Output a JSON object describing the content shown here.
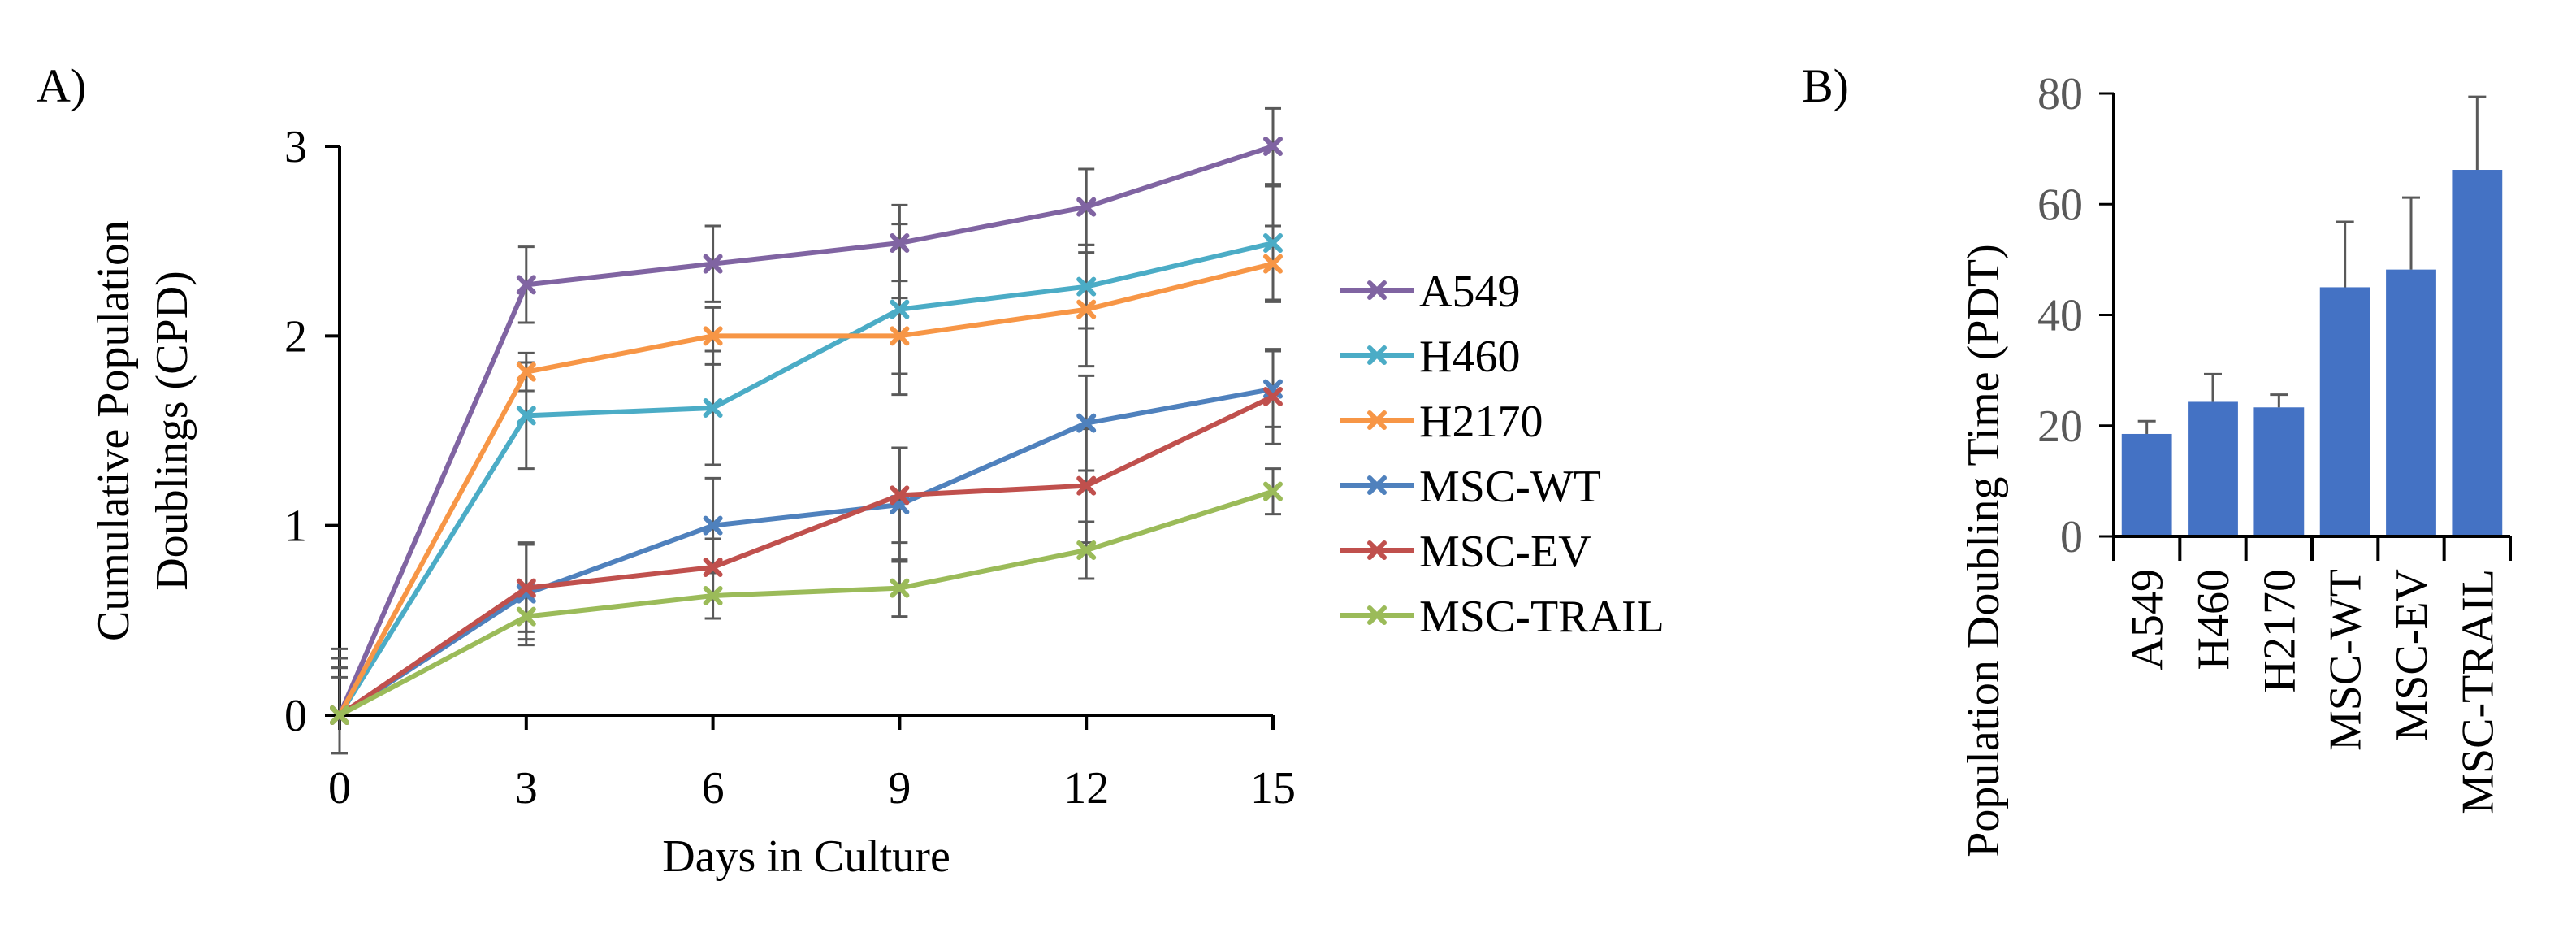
{
  "panel_labels": {
    "a": "A)",
    "b": "B)"
  },
  "colors": {
    "A549": "#8064a2",
    "H460": "#4bacc6",
    "H2170": "#f79646",
    "MSC-WT": "#4f81bd",
    "MSC-EV": "#c0504d",
    "MSC-TRAIL": "#9bbb59",
    "bars": "#4472c4",
    "error_bars": "#595959"
  },
  "chart_data": [
    {
      "type": "line",
      "panel": "A)",
      "title": "",
      "xlabel": "Days in Culture",
      "ylabel": "Cumulative Population Doublings (CPD)",
      "x": [
        0,
        3,
        6,
        9,
        12,
        15
      ],
      "x_ticks": [
        "0",
        "3",
        "6",
        "9",
        "12",
        "15"
      ],
      "y_ticks": [
        "0",
        "1",
        "2",
        "3"
      ],
      "xlim": [
        0,
        15
      ],
      "ylim": [
        0,
        3
      ],
      "legend_position": "right",
      "marker": "x",
      "series": [
        {
          "name": "A549",
          "values": [
            0,
            2.27,
            2.38,
            2.49,
            2.68,
            3.0
          ],
          "errors": [
            0.35,
            0.2,
            0.2,
            0.2,
            0.2,
            0.2
          ]
        },
        {
          "name": "H460",
          "values": [
            0,
            1.58,
            1.62,
            2.14,
            2.26,
            2.49
          ],
          "errors": [
            0.3,
            0.28,
            0.3,
            0.45,
            0.22,
            0.3
          ]
        },
        {
          "name": "H2170",
          "values": [
            0,
            1.81,
            2.0,
            2.0,
            2.14,
            2.38
          ],
          "errors": [
            0.3,
            0.1,
            0.15,
            0.2,
            0.3,
            0.2
          ]
        },
        {
          "name": "MSC-WT",
          "values": [
            0,
            0.64,
            1.0,
            1.11,
            1.54,
            1.72
          ],
          "errors": [
            0.25,
            0.27,
            0.25,
            0.3,
            0.25,
            0.2
          ]
        },
        {
          "name": "MSC-EV",
          "values": [
            0,
            0.67,
            0.78,
            1.16,
            1.21,
            1.68
          ],
          "errors": [
            0.25,
            0.23,
            0.15,
            0.25,
            0.3,
            0.25
          ]
        },
        {
          "name": "MSC-TRAIL",
          "values": [
            0,
            0.52,
            0.63,
            0.67,
            0.87,
            1.18
          ],
          "errors": [
            0.2,
            0.12,
            0.12,
            0.15,
            0.15,
            0.12
          ]
        }
      ]
    },
    {
      "type": "bar",
      "panel": "B)",
      "title": "",
      "xlabel": "",
      "ylabel": "Population Doubling Time (PDT)",
      "categories": [
        "A549",
        "H460",
        "H2170",
        "MSC-WT",
        "MSC-EV",
        "MSC-TRAIL"
      ],
      "values": [
        18.5,
        24.3,
        23.3,
        45.0,
        48.2,
        66.2
      ],
      "errors": [
        2.3,
        5.0,
        2.3,
        11.8,
        13.0,
        13.2
      ],
      "y_ticks": [
        "0",
        "20",
        "40",
        "60",
        "80"
      ],
      "ylim": [
        0,
        80
      ]
    }
  ]
}
